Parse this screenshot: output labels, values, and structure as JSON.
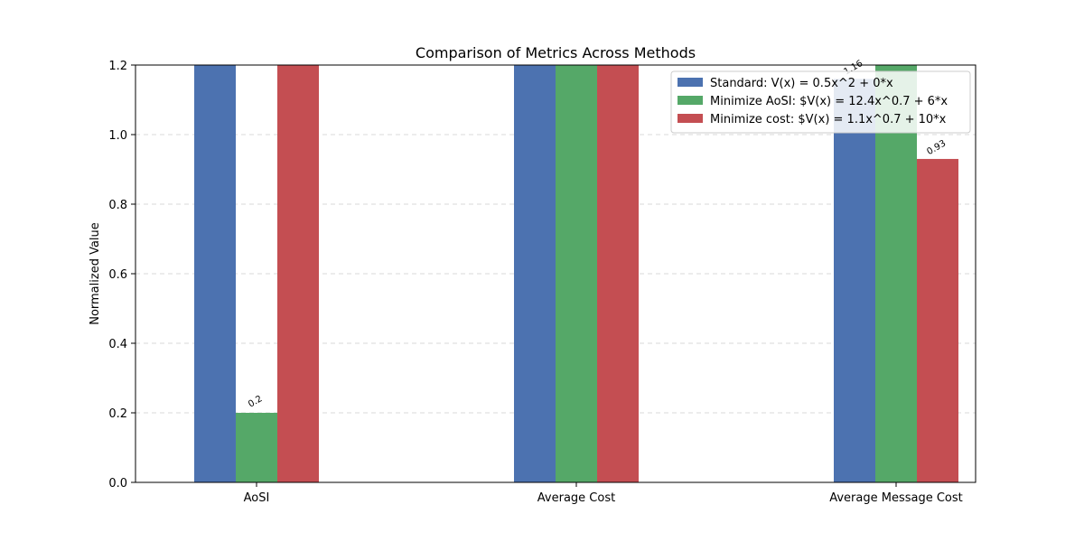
{
  "chart_data": {
    "type": "bar",
    "title": "Comparison of Metrics Across Methods",
    "xlabel": "",
    "ylabel": "Normalized Value",
    "categories": [
      "AoSI",
      "Average Cost",
      "Average Message Cost"
    ],
    "ylim": [
      0,
      1.2
    ],
    "yticks": [
      "0.0",
      "0.2",
      "0.4",
      "0.6",
      "0.8",
      "1.0",
      "1.2"
    ],
    "grid": "y, dashed",
    "legend_position": "upper right",
    "series": [
      {
        "name": "Standard: V(x) = 0.5x^2 + 0*x",
        "color": "#4c72b0",
        "values": [
          1.2,
          1.2,
          1.16
        ],
        "labels": [
          "",
          "",
          "1.16"
        ]
      },
      {
        "name": "Minimize AoSI: $V(x) = 12.4x^0.7 + 6*x",
        "color": "#55a868",
        "values": [
          0.2,
          1.2,
          1.2
        ],
        "labels": [
          "0.2",
          "",
          ""
        ]
      },
      {
        "name": "Minimize cost: $V(x) = 1.1x^0.7 + 10*x",
        "color": "#c44e52",
        "values": [
          1.2,
          1.2,
          0.93
        ],
        "labels": [
          "",
          "",
          "0.93"
        ]
      }
    ]
  }
}
